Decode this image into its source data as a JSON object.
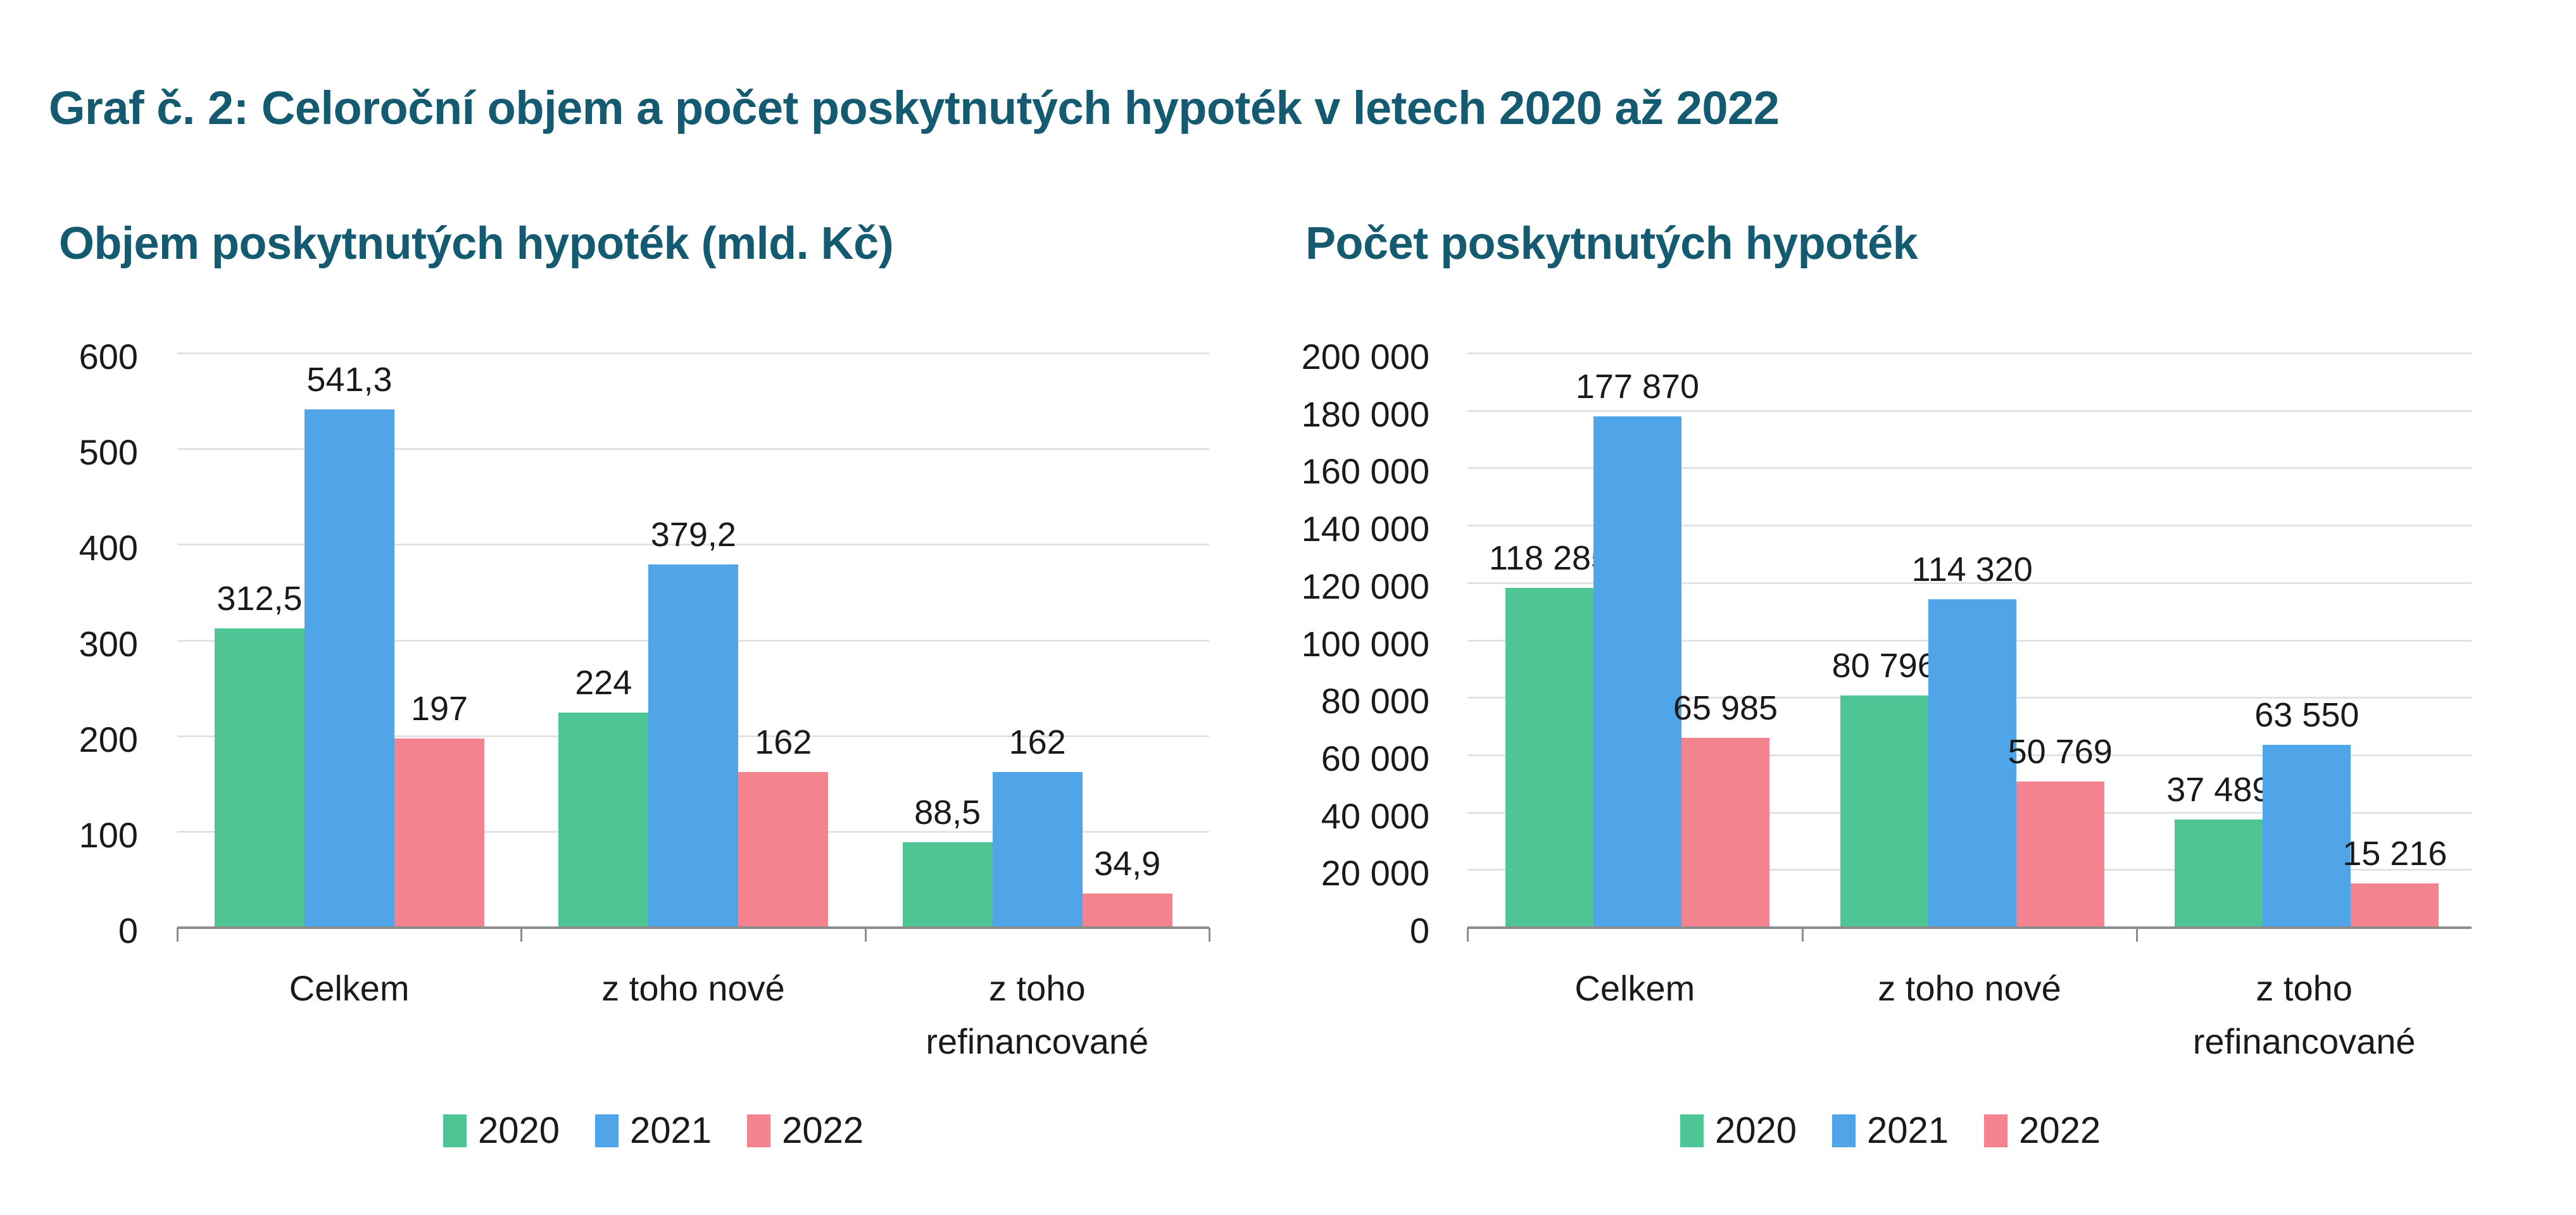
{
  "title": "Graf č. 2: Celoroční objem a počet poskytnutých hypoték v letech 2020 až 2022",
  "colors": {
    "title": "#145a70",
    "2020": "#4fc595",
    "2021": "#4fa5e8",
    "2022": "#f3848f",
    "grid": "#e3e3e3",
    "axis": "#8c8c8c"
  },
  "legend": [
    {
      "label": "2020",
      "color": "#4fc595"
    },
    {
      "label": "2021",
      "color": "#4fa5e8"
    },
    {
      "label": "2022",
      "color": "#f3848f"
    }
  ],
  "panels": {
    "left": {
      "title": "Objem poskytnutých hypoték (mld. Kč)"
    },
    "right": {
      "title": "Počet poskytnutých hypoték"
    }
  },
  "chart_data": [
    {
      "type": "bar",
      "title": "Objem poskytnutých hypoték (mld. Kč)",
      "xlabel": "",
      "ylabel": "",
      "categories": [
        "Celkem",
        "z toho nové",
        "z toho refinancované"
      ],
      "category_label_lines": [
        [
          "Celkem"
        ],
        [
          "z toho nové"
        ],
        [
          "z toho",
          "refinancované"
        ]
      ],
      "series": [
        {
          "name": "2020",
          "color": "#4fc595",
          "values": [
            312.5,
            224,
            88.5
          ],
          "labels": [
            "312,5",
            "224",
            "88,5"
          ]
        },
        {
          "name": "2021",
          "color": "#4fa5e8",
          "values": [
            541.3,
            379.2,
            162
          ],
          "labels": [
            "541,3",
            "379,2",
            "162"
          ]
        },
        {
          "name": "2022",
          "color": "#f3848f",
          "values": [
            197,
            162,
            34.9
          ],
          "labels": [
            "197",
            "162",
            "34,9"
          ]
        }
      ],
      "ylim": [
        0,
        600
      ],
      "yticks": [
        0,
        100,
        200,
        300,
        400,
        500,
        600
      ],
      "ytick_labels": [
        "0",
        "100",
        "200",
        "300",
        "400",
        "500",
        "600"
      ],
      "grid": true,
      "legend_position": "bottom"
    },
    {
      "type": "bar",
      "title": "Počet poskytnutých hypoték",
      "xlabel": "",
      "ylabel": "",
      "categories": [
        "Celkem",
        "z toho nové",
        "z toho refinancované"
      ],
      "category_label_lines": [
        [
          "Celkem"
        ],
        [
          "z toho nové"
        ],
        [
          "z toho",
          "refinancované"
        ]
      ],
      "series": [
        {
          "name": "2020",
          "color": "#4fc595",
          "values": [
            118285,
            80796,
            37489
          ],
          "labels": [
            "118 285",
            "80 796",
            "37 489"
          ]
        },
        {
          "name": "2021",
          "color": "#4fa5e8",
          "values": [
            177870,
            114320,
            63550
          ],
          "labels": [
            "177 870",
            "114 320",
            "63 550"
          ]
        },
        {
          "name": "2022",
          "color": "#f3848f",
          "values": [
            65985,
            50769,
            15216
          ],
          "labels": [
            "65 985",
            "50 769",
            "15 216"
          ]
        }
      ],
      "ylim": [
        0,
        200000
      ],
      "yticks": [
        0,
        20000,
        40000,
        60000,
        80000,
        100000,
        120000,
        140000,
        160000,
        180000,
        200000
      ],
      "ytick_labels": [
        "0",
        "20 000",
        "40 000",
        "60 000",
        "80 000",
        "100 000",
        "120 000",
        "140 000",
        "160 000",
        "180 000",
        "200 000"
      ],
      "grid": true,
      "legend_position": "bottom"
    }
  ]
}
